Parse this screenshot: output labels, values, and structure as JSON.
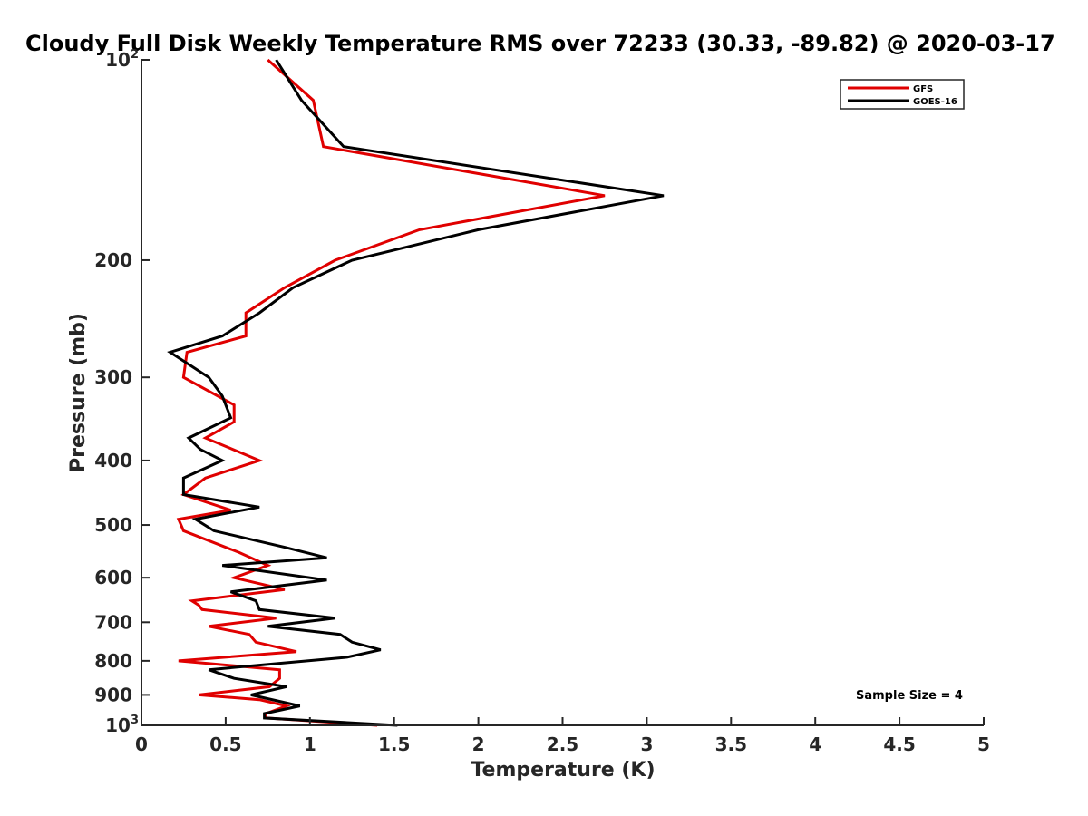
{
  "chart_data": {
    "type": "line",
    "title": "Cloudy Full Disk Weekly Temperature RMS over 72233 (30.33, -89.82) @ 2020-03-17",
    "xlabel": "Temperature (K)",
    "ylabel": "Pressure (mb)",
    "xlim": [
      0,
      5
    ],
    "ylim": [
      100,
      1000
    ],
    "y_scale": "log",
    "y_reversed": true,
    "x_ticks": [
      "0",
      "0.5",
      "1",
      "1.5",
      "2",
      "2.5",
      "3",
      "3.5",
      "4",
      "4.5",
      "5"
    ],
    "y_ticks": [
      {
        "base": "10",
        "exp": "2"
      },
      {
        "text": "200"
      },
      {
        "text": "300"
      },
      {
        "text": "400"
      },
      {
        "text": "500"
      },
      {
        "text": "600"
      },
      {
        "text": "700"
      },
      {
        "text": "800"
      },
      {
        "text": "900"
      },
      {
        "base": "10",
        "exp": "3"
      }
    ],
    "grid": false,
    "legend_position": "top-right",
    "series": [
      {
        "name": "GFS",
        "color": "#e00000",
        "points": [
          [
            0.75,
            100
          ],
          [
            1.02,
            115
          ],
          [
            1.08,
            135
          ],
          [
            2.75,
            160
          ],
          [
            1.65,
            180
          ],
          [
            1.15,
            200
          ],
          [
            0.85,
            220
          ],
          [
            0.62,
            240
          ],
          [
            0.62,
            260
          ],
          [
            0.27,
            275
          ],
          [
            0.25,
            300
          ],
          [
            0.55,
            330
          ],
          [
            0.55,
            350
          ],
          [
            0.38,
            370
          ],
          [
            0.7,
            400
          ],
          [
            0.38,
            425
          ],
          [
            0.25,
            450
          ],
          [
            0.53,
            475
          ],
          [
            0.22,
            490
          ],
          [
            0.25,
            510
          ],
          [
            0.58,
            550
          ],
          [
            0.75,
            575
          ],
          [
            0.55,
            600
          ],
          [
            0.85,
            625
          ],
          [
            0.3,
            650
          ],
          [
            0.34,
            660
          ],
          [
            0.36,
            670
          ],
          [
            0.8,
            690
          ],
          [
            0.4,
            710
          ],
          [
            0.64,
            730
          ],
          [
            0.68,
            750
          ],
          [
            0.92,
            775
          ],
          [
            0.22,
            800
          ],
          [
            0.82,
            825
          ],
          [
            0.82,
            850
          ],
          [
            0.76,
            875
          ],
          [
            0.34,
            900
          ],
          [
            0.7,
            915
          ],
          [
            0.86,
            935
          ],
          [
            0.74,
            960
          ],
          [
            0.74,
            975
          ],
          [
            1.4,
            1000
          ]
        ]
      },
      {
        "name": "GOES-16",
        "color": "#000000",
        "points": [
          [
            0.8,
            100
          ],
          [
            0.95,
            115
          ],
          [
            1.2,
            135
          ],
          [
            3.1,
            160
          ],
          [
            2.0,
            180
          ],
          [
            1.25,
            200
          ],
          [
            0.9,
            220
          ],
          [
            0.7,
            240
          ],
          [
            0.48,
            260
          ],
          [
            0.17,
            275
          ],
          [
            0.4,
            300
          ],
          [
            0.48,
            320
          ],
          [
            0.53,
            345
          ],
          [
            0.28,
            370
          ],
          [
            0.35,
            385
          ],
          [
            0.48,
            400
          ],
          [
            0.25,
            425
          ],
          [
            0.25,
            450
          ],
          [
            0.7,
            470
          ],
          [
            0.32,
            490
          ],
          [
            0.43,
            510
          ],
          [
            0.85,
            540
          ],
          [
            1.1,
            560
          ],
          [
            0.48,
            575
          ],
          [
            1.1,
            605
          ],
          [
            0.53,
            630
          ],
          [
            0.68,
            650
          ],
          [
            0.7,
            670
          ],
          [
            1.15,
            690
          ],
          [
            0.75,
            710
          ],
          [
            1.18,
            730
          ],
          [
            1.25,
            750
          ],
          [
            1.42,
            770
          ],
          [
            1.22,
            790
          ],
          [
            0.4,
            825
          ],
          [
            0.55,
            850
          ],
          [
            0.86,
            875
          ],
          [
            0.65,
            900
          ],
          [
            0.94,
            935
          ],
          [
            0.73,
            960
          ],
          [
            0.73,
            975
          ],
          [
            1.52,
            1000
          ]
        ]
      }
    ],
    "annotations": [
      "Sample Size = 4"
    ]
  }
}
